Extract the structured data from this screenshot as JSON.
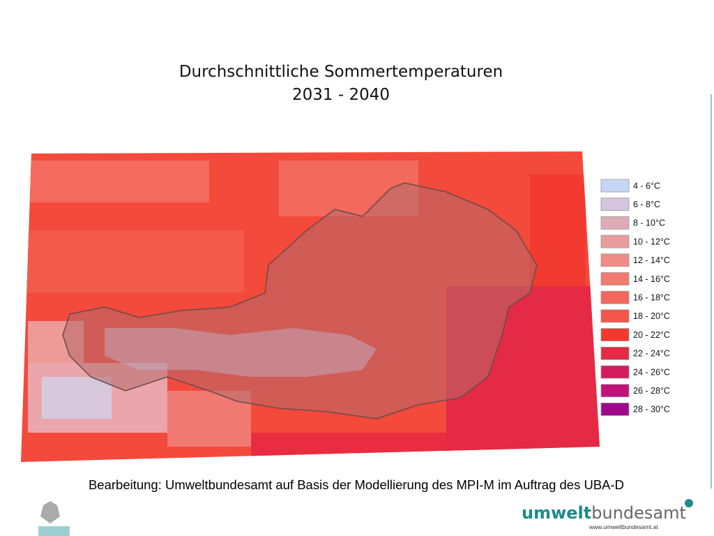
{
  "title": {
    "line1": "Durchschnittliche Sommertemperaturen",
    "line2": "2031 - 2040"
  },
  "legend": [
    {
      "label": "4 - 6°C",
      "color": "#c6d6f6"
    },
    {
      "label": "6 - 8°C",
      "color": "#d6c4dc"
    },
    {
      "label": "8 - 10°C",
      "color": "#deacb6"
    },
    {
      "label": "10 - 12°C",
      "color": "#ea9c9a"
    },
    {
      "label": "12 - 14°C",
      "color": "#f08c86"
    },
    {
      "label": "14 - 16°C",
      "color": "#f27a70"
    },
    {
      "label": "16 - 18°C",
      "color": "#f4685c"
    },
    {
      "label": "18 - 20°C",
      "color": "#f4564a"
    },
    {
      "label": "20 - 22°C",
      "color": "#f23a2e"
    },
    {
      "label": "22 - 24°C",
      "color": "#e42a44"
    },
    {
      "label": "24 - 26°C",
      "color": "#d41c5c"
    },
    {
      "label": "26 - 28°C",
      "color": "#c01278"
    },
    {
      "label": "28 - 30°C",
      "color": "#a0088c"
    }
  ],
  "caption": "Bearbeitung: Umweltbundesamt auf Basis der Modellierung des MPI-M im Auftrag des UBA-D",
  "logo": {
    "bold": "umwelt",
    "regular": "bundesamt",
    "url": "www.umweltbundesamt.at"
  }
}
